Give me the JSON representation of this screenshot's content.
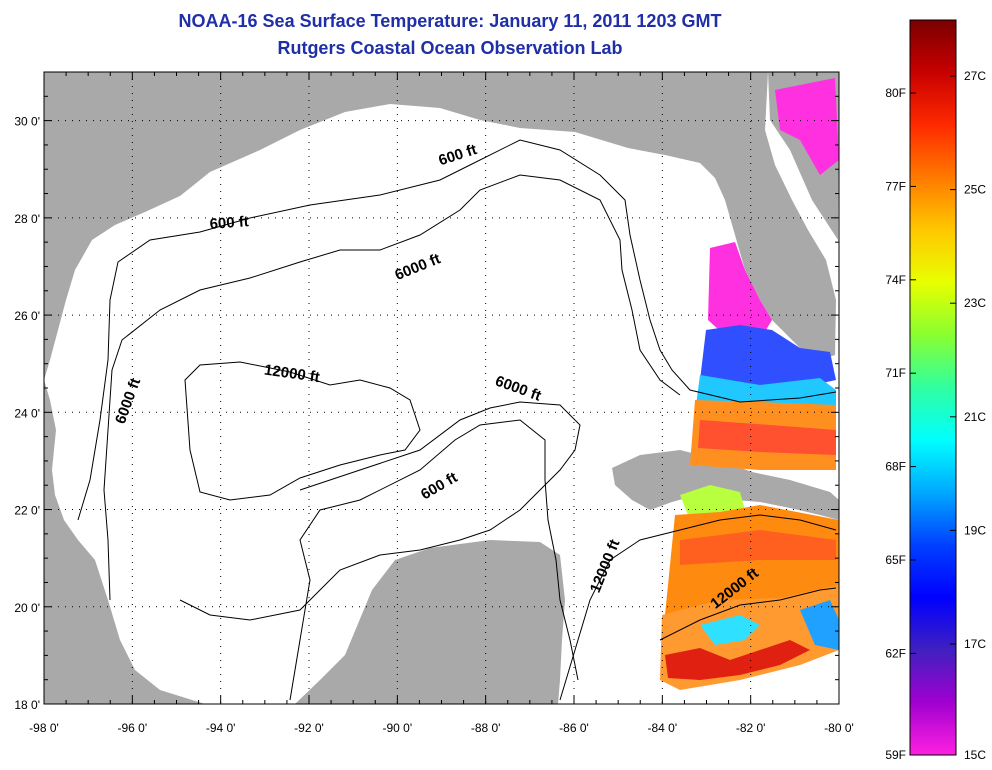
{
  "title": {
    "line1": "NOAA-16 Sea Surface Temperature:  January 11, 2011 1203 GMT",
    "line2": "Rutgers Coastal Ocean Observation Lab"
  },
  "map": {
    "lon_range": [
      -98,
      -80
    ],
    "lat_range": [
      18,
      31
    ],
    "lon_ticks": [
      "-98 0'",
      "-96 0'",
      "-94 0'",
      "-92 0'",
      "-90 0'",
      "-88 0'",
      "-86 0'",
      "-84 0'",
      "-82 0'",
      "-80 0'"
    ],
    "lat_ticks": [
      "18 0'",
      "20 0'",
      "22 0'",
      "24 0'",
      "26 0'",
      "28 0'",
      "30 0'"
    ],
    "grid": true,
    "land_color": "#a9a9a9",
    "contour_labels": [
      {
        "text": "600 ft",
        "lon": -93.8,
        "lat": 27.8,
        "angle": -4
      },
      {
        "text": "600 ft",
        "lon": -88.6,
        "lat": 29.2,
        "angle": -18
      },
      {
        "text": "6000 ft",
        "lon": -89.5,
        "lat": 26.9,
        "angle": -22
      },
      {
        "text": "12000 ft",
        "lon": -92.4,
        "lat": 24.7,
        "angle": 8
      },
      {
        "text": "6000 ft",
        "lon": -96.0,
        "lat": 24.2,
        "angle": -70
      },
      {
        "text": "6000 ft",
        "lon": -87.3,
        "lat": 24.4,
        "angle": 20
      },
      {
        "text": "600 ft",
        "lon": -89.0,
        "lat": 22.4,
        "angle": -30
      },
      {
        "text": "12000 ft",
        "lon": -85.2,
        "lat": 20.8,
        "angle": -68
      },
      {
        "text": "12000 ft",
        "lon": -82.3,
        "lat": 20.3,
        "angle": -38
      }
    ]
  },
  "colorbar": {
    "f_labels": [
      "80F",
      "77F",
      "74F",
      "71F",
      "68F",
      "65F",
      "62F",
      "59F"
    ],
    "c_labels": [
      "27C",
      "25C",
      "23C",
      "21C",
      "19C",
      "17C",
      "15C"
    ],
    "colors": [
      "#7a0000",
      "#c80000",
      "#ff2a00",
      "#ff7a00",
      "#ffc800",
      "#e8ff00",
      "#88ff30",
      "#30ffa0",
      "#00ffff",
      "#00a8ff",
      "#0040ff",
      "#0000ff",
      "#4020c0",
      "#a000d0",
      "#ff20e0"
    ]
  }
}
